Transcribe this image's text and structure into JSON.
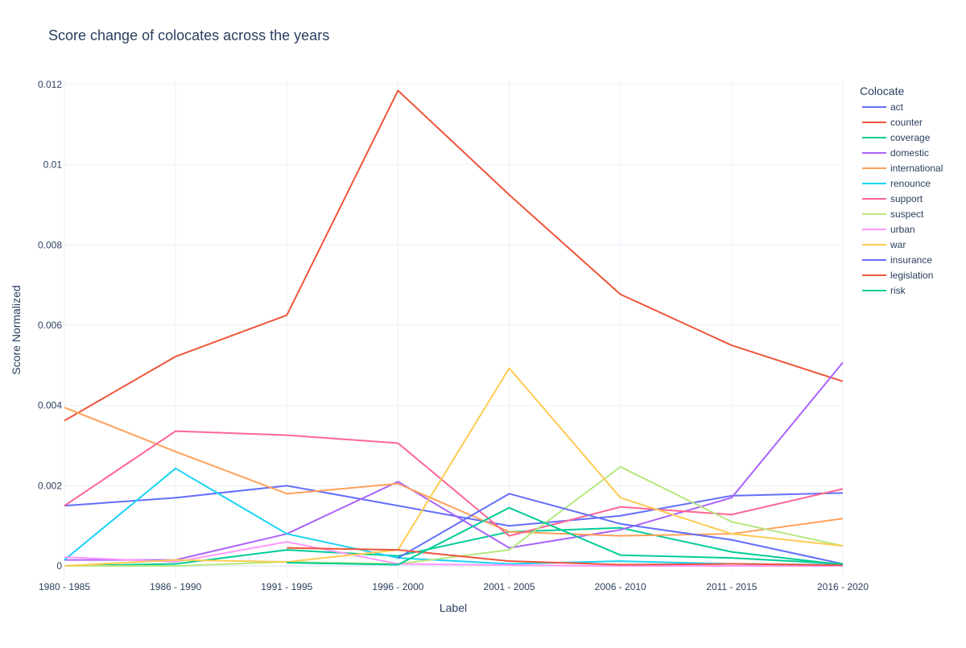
{
  "chart_data": {
    "type": "line",
    "title": "Score change of colocates across the years",
    "xlabel": "Label",
    "ylabel": "Score Normalized",
    "legend_title": "Colocate",
    "legend_position": "right",
    "grid": true,
    "ylim": [
      -0.0003,
      0.0121
    ],
    "y_ticks": [
      0,
      0.002,
      0.004,
      0.006,
      0.008,
      0.01,
      0.012
    ],
    "y_tick_labels": [
      "0",
      "0.002",
      "0.004",
      "0.006",
      "0.008",
      "0.01",
      "0.012"
    ],
    "categories": [
      "1980 - 1985",
      "1986 - 1990",
      "1991 - 1995",
      "1996 - 2000",
      "2001 - 2005",
      "2006 - 2010",
      "2011 - 2015",
      "2016 - 2020"
    ],
    "series": [
      {
        "name": "act",
        "color": "#636efa",
        "values": [
          0.0015,
          0.0017,
          0.002,
          0.0015,
          0.001,
          0.00125,
          0.00175,
          0.00182
        ]
      },
      {
        "name": "counter",
        "color": "#EF553B",
        "values": [
          0.00362,
          0.00522,
          0.00625,
          0.01185,
          0.00925,
          0.00677,
          0.0055,
          0.0046
        ]
      },
      {
        "name": "coverage",
        "color": "#00cc96",
        "values": [
          0.0,
          5e-05,
          0.0004,
          0.00025,
          0.00085,
          0.00095,
          0.00035,
          3e-05
        ]
      },
      {
        "name": "domestic",
        "color": "#ab63fa",
        "values": [
          0.00015,
          0.00015,
          0.0008,
          0.0021,
          0.00045,
          0.0009,
          0.0017,
          0.00507
        ]
      },
      {
        "name": "international",
        "color": "#FFA15A",
        "values": [
          0.00395,
          0.00285,
          0.0018,
          0.00205,
          0.00085,
          0.00075,
          0.0008,
          0.00118
        ]
      },
      {
        "name": "renounce",
        "color": "#19d3f3",
        "values": [
          0.00015,
          0.00243,
          0.0008,
          0.0002,
          5e-05,
          0.00012,
          5e-05,
          3e-05
        ]
      },
      {
        "name": "support",
        "color": "#FF6692",
        "values": [
          0.0015,
          0.00336,
          0.00326,
          0.00306,
          0.00075,
          0.00147,
          0.00128,
          0.00192
        ]
      },
      {
        "name": "suspect",
        "color": "#B6E880",
        "values": [
          0.0,
          0.0,
          0.0001,
          5e-05,
          0.0004,
          0.00247,
          0.0011,
          0.0005
        ]
      },
      {
        "name": "urban",
        "color": "#FF97FF",
        "values": [
          0.00022,
          0.0001,
          0.0006,
          5e-05,
          2e-05,
          0.0,
          0.0,
          0.0
        ]
      },
      {
        "name": "war",
        "color": "#FECB52",
        "values": [
          0.0,
          0.00015,
          0.0001,
          0.0004,
          0.00493,
          0.0017,
          0.0008,
          0.0005
        ]
      },
      {
        "name": "insurance",
        "color": "#636efa",
        "values": [
          null,
          null,
          null,
          0.0002,
          0.0018,
          0.00105,
          0.00065,
          5e-05
        ]
      },
      {
        "name": "legislation",
        "color": "#EF553B",
        "values": [
          null,
          null,
          0.00045,
          0.0004,
          0.00012,
          3e-05,
          5e-05,
          2e-05
        ]
      },
      {
        "name": "risk",
        "color": "#00cc96",
        "values": [
          null,
          null,
          8e-05,
          3e-05,
          0.00145,
          0.00027,
          0.0002,
          5e-05
        ]
      }
    ]
  }
}
